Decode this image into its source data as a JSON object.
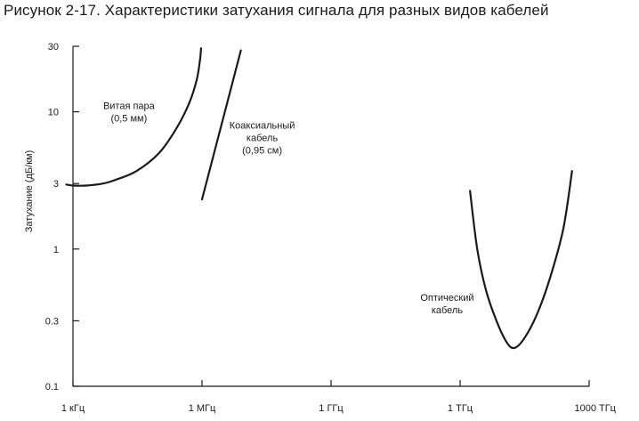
{
  "chart_data": {
    "type": "line",
    "title": "Рисунок 2-17. Характеристики затухания сигнала для разных видов кабелей",
    "xlabel": "",
    "ylabel": "Затухание (дБ/км)",
    "x_scale": "log",
    "y_scale": "log",
    "xlim": [
      1000,
      1000000000000000
    ],
    "ylim": [
      0.1,
      30
    ],
    "x_ticks": [
      {
        "value": 1000,
        "label": "1 кГц"
      },
      {
        "value": 1000000,
        "label": "1 МГц"
      },
      {
        "value": 1000000000,
        "label": "1 ГГц"
      },
      {
        "value": 1000000000000,
        "label": "1 ТГц"
      },
      {
        "value": 1000000000000000,
        "label": "1000 ТГц"
      }
    ],
    "y_ticks": [
      {
        "value": 0.1,
        "label": "0.1"
      },
      {
        "value": 0.3,
        "label": "0.3"
      },
      {
        "value": 1,
        "label": "1"
      },
      {
        "value": 3,
        "label": "3"
      },
      {
        "value": 10,
        "label": "10"
      },
      {
        "value": 30,
        "label": "30"
      }
    ],
    "grid": false,
    "legend": "none",
    "line_color": "#1a1a1a",
    "series": [
      {
        "name": "Витая пара",
        "label_lines": [
          "Витая пара",
          "(0,5 мм)"
        ],
        "label_anchor": {
          "x": 20000,
          "y": 10
        },
        "points": [
          {
            "x": 700,
            "y": 2.95
          },
          {
            "x": 1000,
            "y": 2.9
          },
          {
            "x": 2000,
            "y": 2.9
          },
          {
            "x": 5000,
            "y": 3.0
          },
          {
            "x": 10000,
            "y": 3.2
          },
          {
            "x": 30000,
            "y": 3.7
          },
          {
            "x": 100000,
            "y": 5.0
          },
          {
            "x": 250000,
            "y": 7.5
          },
          {
            "x": 500000,
            "y": 11.5
          },
          {
            "x": 750000,
            "y": 17
          },
          {
            "x": 900000,
            "y": 24
          },
          {
            "x": 950000,
            "y": 29
          }
        ]
      },
      {
        "name": "Коаксиальный кабель",
        "label_lines": [
          "Коаксиальный",
          "кабель",
          "(0,95 см)"
        ],
        "label_anchor": {
          "x": 25000000,
          "y": 6.5
        },
        "points": [
          {
            "x": 1000000,
            "y": 2.3
          },
          {
            "x": 8000000,
            "y": 28
          }
        ]
      },
      {
        "name": "Оптический кабель",
        "label_lines": [
          "Оптический",
          "кабель"
        ],
        "label_anchor": {
          "x": 500000000000,
          "y": 0.4
        },
        "points": [
          {
            "x": 1700000000000,
            "y": 2.65
          },
          {
            "x": 2500000000000,
            "y": 1.0
          },
          {
            "x": 4000000000000,
            "y": 0.5
          },
          {
            "x": 7000000000000,
            "y": 0.3
          },
          {
            "x": 12000000000000,
            "y": 0.21
          },
          {
            "x": 18000000000000,
            "y": 0.19
          },
          {
            "x": 30000000000000,
            "y": 0.22
          },
          {
            "x": 60000000000000,
            "y": 0.33
          },
          {
            "x": 120000000000000,
            "y": 0.6
          },
          {
            "x": 250000000000000,
            "y": 1.4
          },
          {
            "x": 400000000000000,
            "y": 3.7
          }
        ]
      }
    ]
  }
}
